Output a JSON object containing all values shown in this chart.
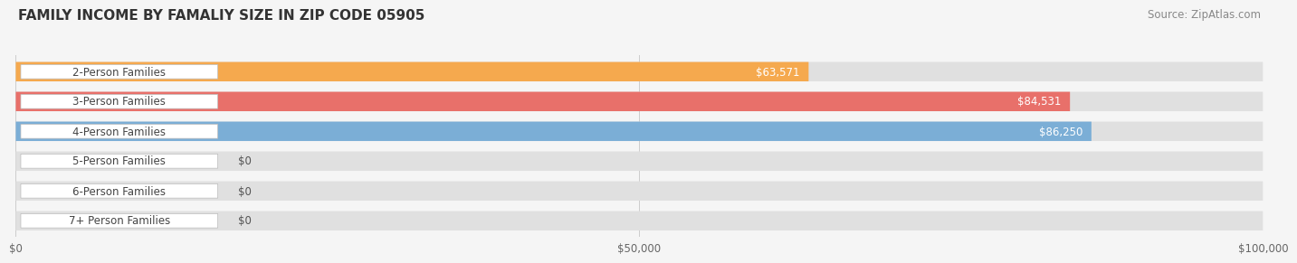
{
  "title": "FAMILY INCOME BY FAMALIY SIZE IN ZIP CODE 05905",
  "source": "Source: ZipAtlas.com",
  "categories": [
    "2-Person Families",
    "3-Person Families",
    "4-Person Families",
    "5-Person Families",
    "6-Person Families",
    "7+ Person Families"
  ],
  "values": [
    63571,
    84531,
    86250,
    0,
    0,
    0
  ],
  "bar_colors": [
    "#F5A94E",
    "#E8706A",
    "#7BAED6",
    "#C4A8D4",
    "#7ECFBF",
    "#A8B8E0"
  ],
  "value_labels": [
    "$63,571",
    "$84,531",
    "$86,250",
    "$0",
    "$0",
    "$0"
  ],
  "xmax": 100000,
  "xticks": [
    0,
    50000,
    100000
  ],
  "xtick_labels": [
    "$0",
    "$50,000",
    "$100,000"
  ],
  "background_color": "#f5f5f5",
  "bar_bg_color": "#e0e0e0",
  "title_fontsize": 11,
  "source_fontsize": 8.5,
  "label_fontsize": 8.5,
  "value_fontsize": 8.5
}
